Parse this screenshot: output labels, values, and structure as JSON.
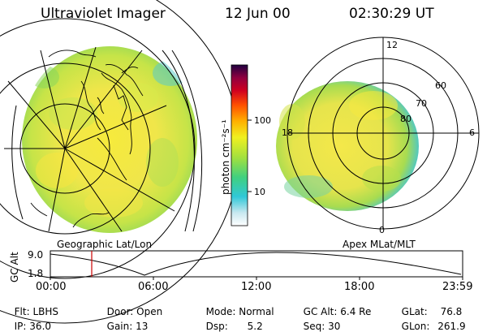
{
  "header": {
    "title": "Ultraviolet Imager",
    "date": "12 Jun 00",
    "time": "02:30:29 UT"
  },
  "geo_panel": {
    "caption": "Geographic Lat/Lon"
  },
  "polar_panel": {
    "caption": "Apex MLat/MLT",
    "mlt_labels": [
      "12",
      "18",
      "6",
      "0"
    ],
    "lat_labels": [
      "60",
      "70",
      "80"
    ]
  },
  "colorbar": {
    "unit_label": "photon cm⁻²s⁻¹",
    "ticks": [
      "100",
      "10"
    ],
    "scale": "log"
  },
  "orbit_plot": {
    "ylabel": "GC Alt",
    "ytick_top": "9.0",
    "ytick_bottom": "1.8",
    "xticks": [
      "00:00",
      "06:00",
      "12:00",
      "18:00",
      "23:59"
    ],
    "marker_time": "02:30"
  },
  "status": [
    {
      "label": "Flt:",
      "value": "LBHS"
    },
    {
      "label": "Door:",
      "value": "Open"
    },
    {
      "label": "Mode:",
      "value": "Normal"
    },
    {
      "label": "GC Alt:",
      "value": "6.4 Re"
    },
    {
      "label": "GLat:",
      "value": "76.8"
    },
    {
      "label": "IP:",
      "value": "36.0"
    },
    {
      "label": "Gain:",
      "value": "13"
    },
    {
      "label": "Dsp:",
      "value": "5.2"
    },
    {
      "label": "Seq:",
      "value": "30"
    },
    {
      "label": "GLon:",
      "value": "261.9"
    }
  ],
  "colors": {
    "frame": "#000000",
    "marker": "#cc0000",
    "aurora_core": "#f4e84a",
    "aurora_mid": "#b8e04a",
    "aurora_edge": "#40c8d8"
  }
}
